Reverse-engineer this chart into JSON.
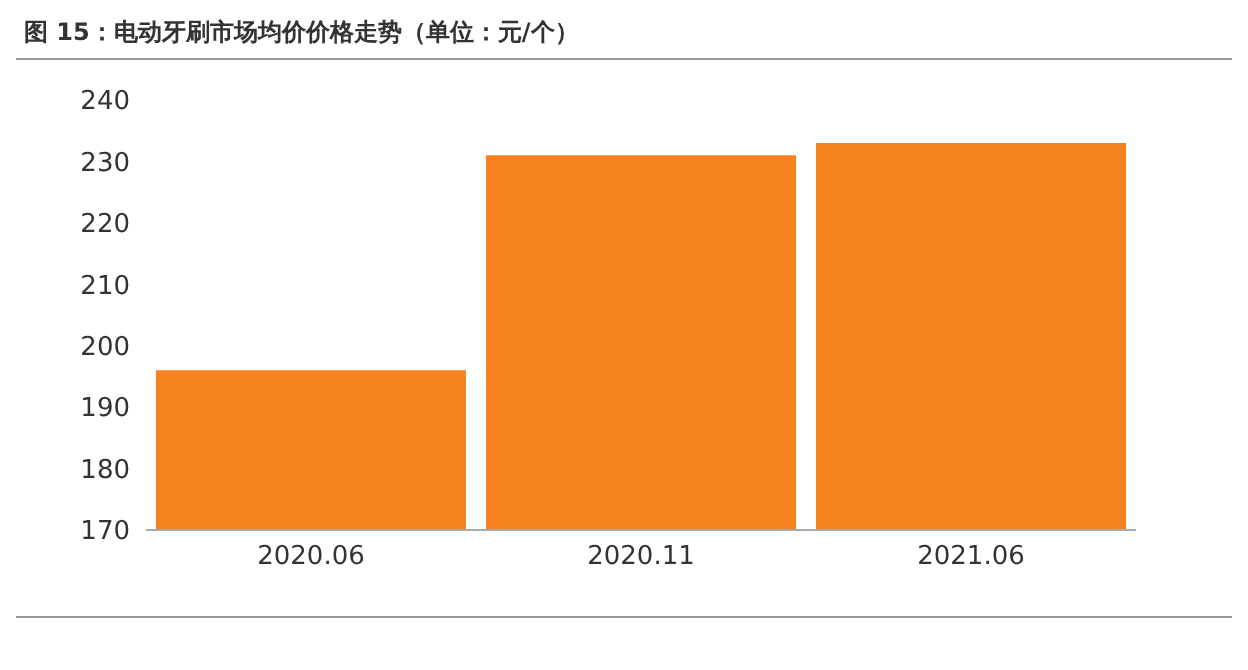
{
  "chart_data": {
    "type": "bar",
    "title": "图 15：电动牙刷市场均价价格走势（单位：元/个）",
    "categories": [
      "2020.06",
      "2020.11",
      "2021.06"
    ],
    "values": [
      196,
      231,
      233
    ],
    "color": "#f5821f",
    "ylim": [
      170,
      240
    ],
    "yticks": [
      170,
      180,
      190,
      200,
      210,
      220,
      230,
      240
    ],
    "grid": false
  }
}
